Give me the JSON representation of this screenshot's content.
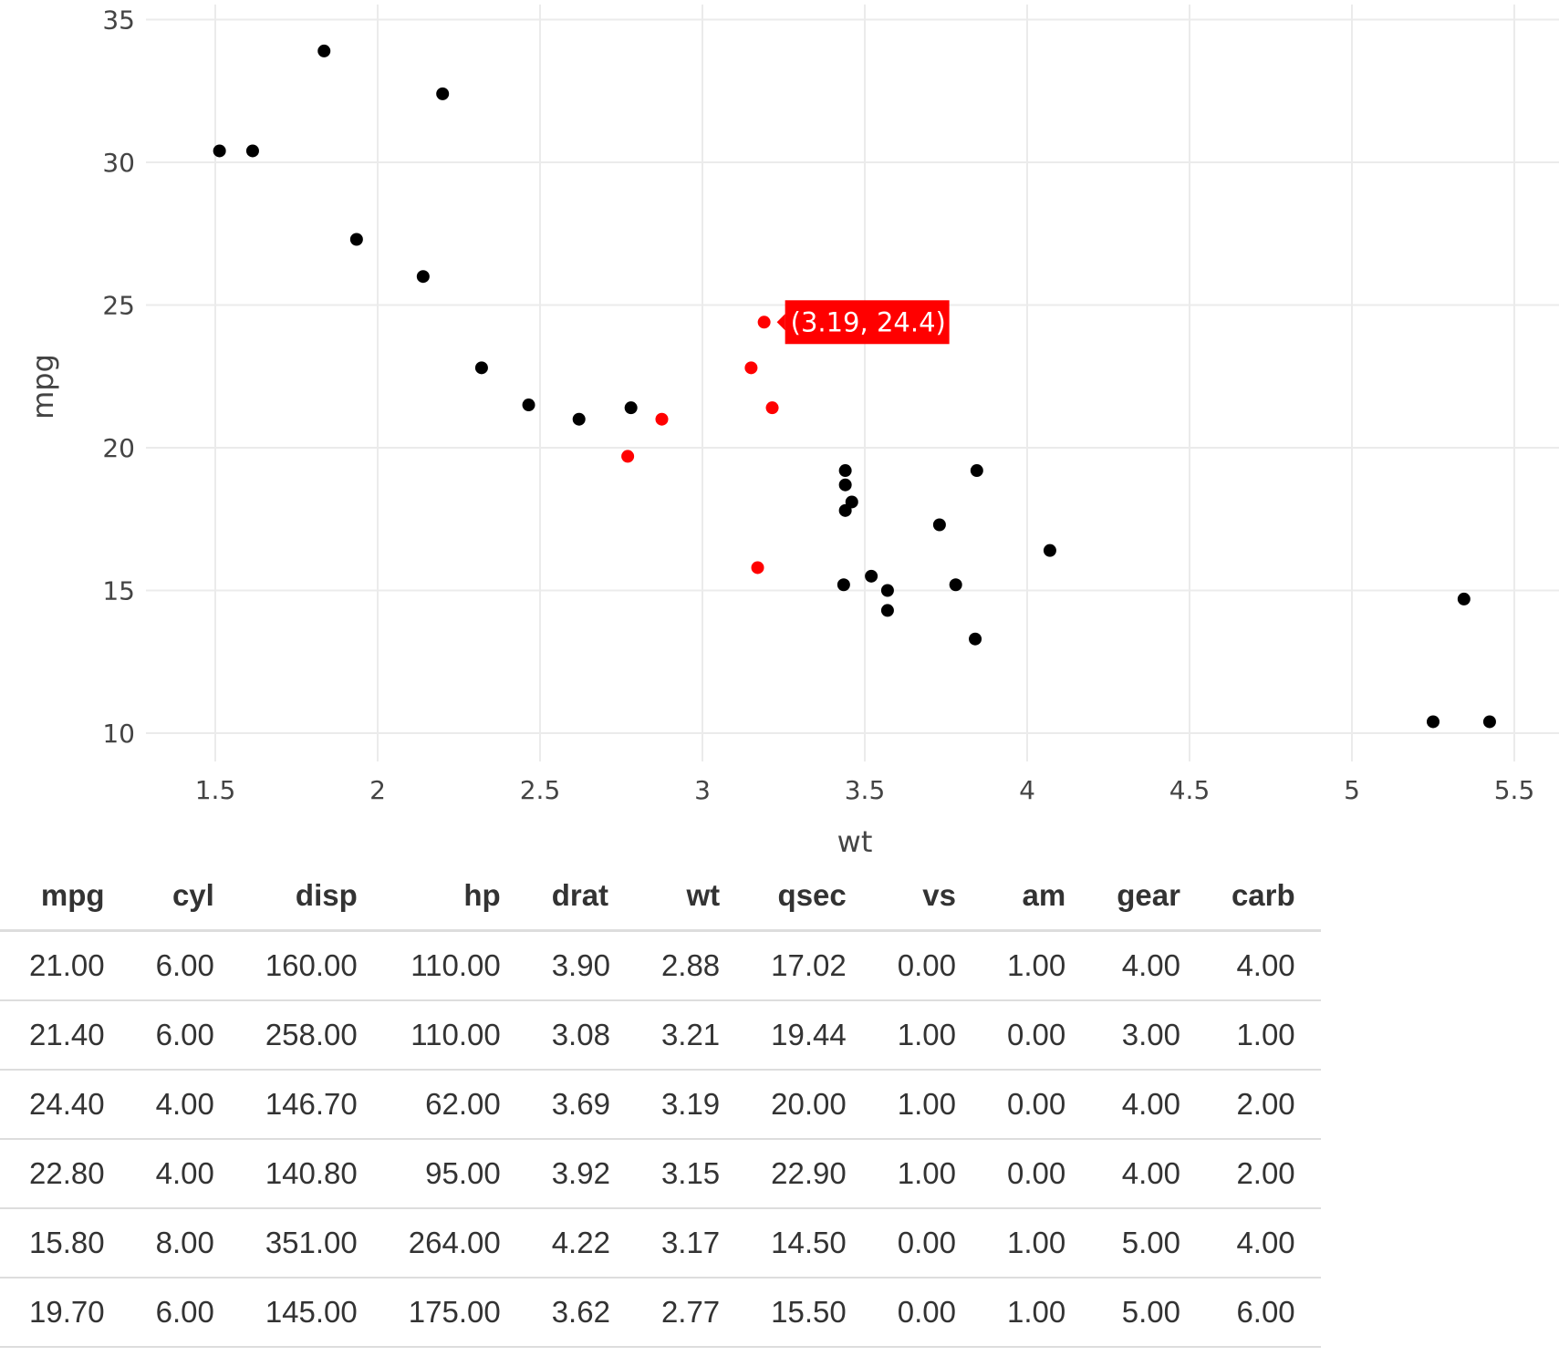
{
  "chart_data": {
    "type": "scatter",
    "xlabel": "wt",
    "ylabel": "mpg",
    "xlim": [
      1.35,
      5.72
    ],
    "ylim": [
      8.9,
      35.6
    ],
    "x_ticks": [
      "1.5",
      "2",
      "2.5",
      "3",
      "3.5",
      "4",
      "4.5",
      "5",
      "5.5"
    ],
    "y_ticks": [
      "10",
      "15",
      "20",
      "25",
      "30",
      "35"
    ],
    "grid": true,
    "point_colors": {
      "default": "#000000",
      "selected": "#ff0000"
    },
    "tooltip": {
      "label": "(3.19, 24.4)",
      "x": 3.19,
      "y": 24.4,
      "color": "#ff0000"
    },
    "points": [
      {
        "x": 2.62,
        "y": 21.0,
        "selected": false
      },
      {
        "x": 2.875,
        "y": 21.0,
        "selected": true
      },
      {
        "x": 2.32,
        "y": 22.8,
        "selected": false
      },
      {
        "x": 3.215,
        "y": 21.4,
        "selected": true
      },
      {
        "x": 3.44,
        "y": 18.7,
        "selected": false
      },
      {
        "x": 3.46,
        "y": 18.1,
        "selected": false
      },
      {
        "x": 3.57,
        "y": 14.3,
        "selected": false
      },
      {
        "x": 3.19,
        "y": 24.4,
        "selected": true
      },
      {
        "x": 3.15,
        "y": 22.8,
        "selected": true
      },
      {
        "x": 3.44,
        "y": 19.2,
        "selected": false
      },
      {
        "x": 3.44,
        "y": 17.8,
        "selected": false
      },
      {
        "x": 4.07,
        "y": 16.4,
        "selected": false
      },
      {
        "x": 3.73,
        "y": 17.3,
        "selected": false
      },
      {
        "x": 3.78,
        "y": 15.2,
        "selected": false
      },
      {
        "x": 5.25,
        "y": 10.4,
        "selected": false
      },
      {
        "x": 5.424,
        "y": 10.4,
        "selected": false
      },
      {
        "x": 5.345,
        "y": 14.7,
        "selected": false
      },
      {
        "x": 2.2,
        "y": 32.4,
        "selected": false
      },
      {
        "x": 1.615,
        "y": 30.4,
        "selected": false
      },
      {
        "x": 1.835,
        "y": 33.9,
        "selected": false
      },
      {
        "x": 2.465,
        "y": 21.5,
        "selected": false
      },
      {
        "x": 3.52,
        "y": 15.5,
        "selected": false
      },
      {
        "x": 3.435,
        "y": 15.2,
        "selected": false
      },
      {
        "x": 3.84,
        "y": 13.3,
        "selected": false
      },
      {
        "x": 3.845,
        "y": 19.2,
        "selected": false
      },
      {
        "x": 1.935,
        "y": 27.3,
        "selected": false
      },
      {
        "x": 2.14,
        "y": 26.0,
        "selected": false
      },
      {
        "x": 1.513,
        "y": 30.4,
        "selected": false
      },
      {
        "x": 3.17,
        "y": 15.8,
        "selected": true
      },
      {
        "x": 2.77,
        "y": 19.7,
        "selected": true
      },
      {
        "x": 3.57,
        "y": 15.0,
        "selected": false
      },
      {
        "x": 2.78,
        "y": 21.4,
        "selected": false
      }
    ]
  },
  "table": {
    "columns": [
      "mpg",
      "cyl",
      "disp",
      "hp",
      "drat",
      "wt",
      "qsec",
      "vs",
      "am",
      "gear",
      "carb"
    ],
    "rows": [
      [
        "21.00",
        "6.00",
        "160.00",
        "110.00",
        "3.90",
        "2.88",
        "17.02",
        "0.00",
        "1.00",
        "4.00",
        "4.00"
      ],
      [
        "21.40",
        "6.00",
        "258.00",
        "110.00",
        "3.08",
        "3.21",
        "19.44",
        "1.00",
        "0.00",
        "3.00",
        "1.00"
      ],
      [
        "24.40",
        "4.00",
        "146.70",
        "62.00",
        "3.69",
        "3.19",
        "20.00",
        "1.00",
        "0.00",
        "4.00",
        "2.00"
      ],
      [
        "22.80",
        "4.00",
        "140.80",
        "95.00",
        "3.92",
        "3.15",
        "22.90",
        "1.00",
        "0.00",
        "4.00",
        "2.00"
      ],
      [
        "15.80",
        "8.00",
        "351.00",
        "264.00",
        "4.22",
        "3.17",
        "14.50",
        "0.00",
        "1.00",
        "5.00",
        "4.00"
      ],
      [
        "19.70",
        "6.00",
        "145.00",
        "175.00",
        "3.62",
        "2.77",
        "15.50",
        "0.00",
        "1.00",
        "5.00",
        "6.00"
      ]
    ]
  }
}
